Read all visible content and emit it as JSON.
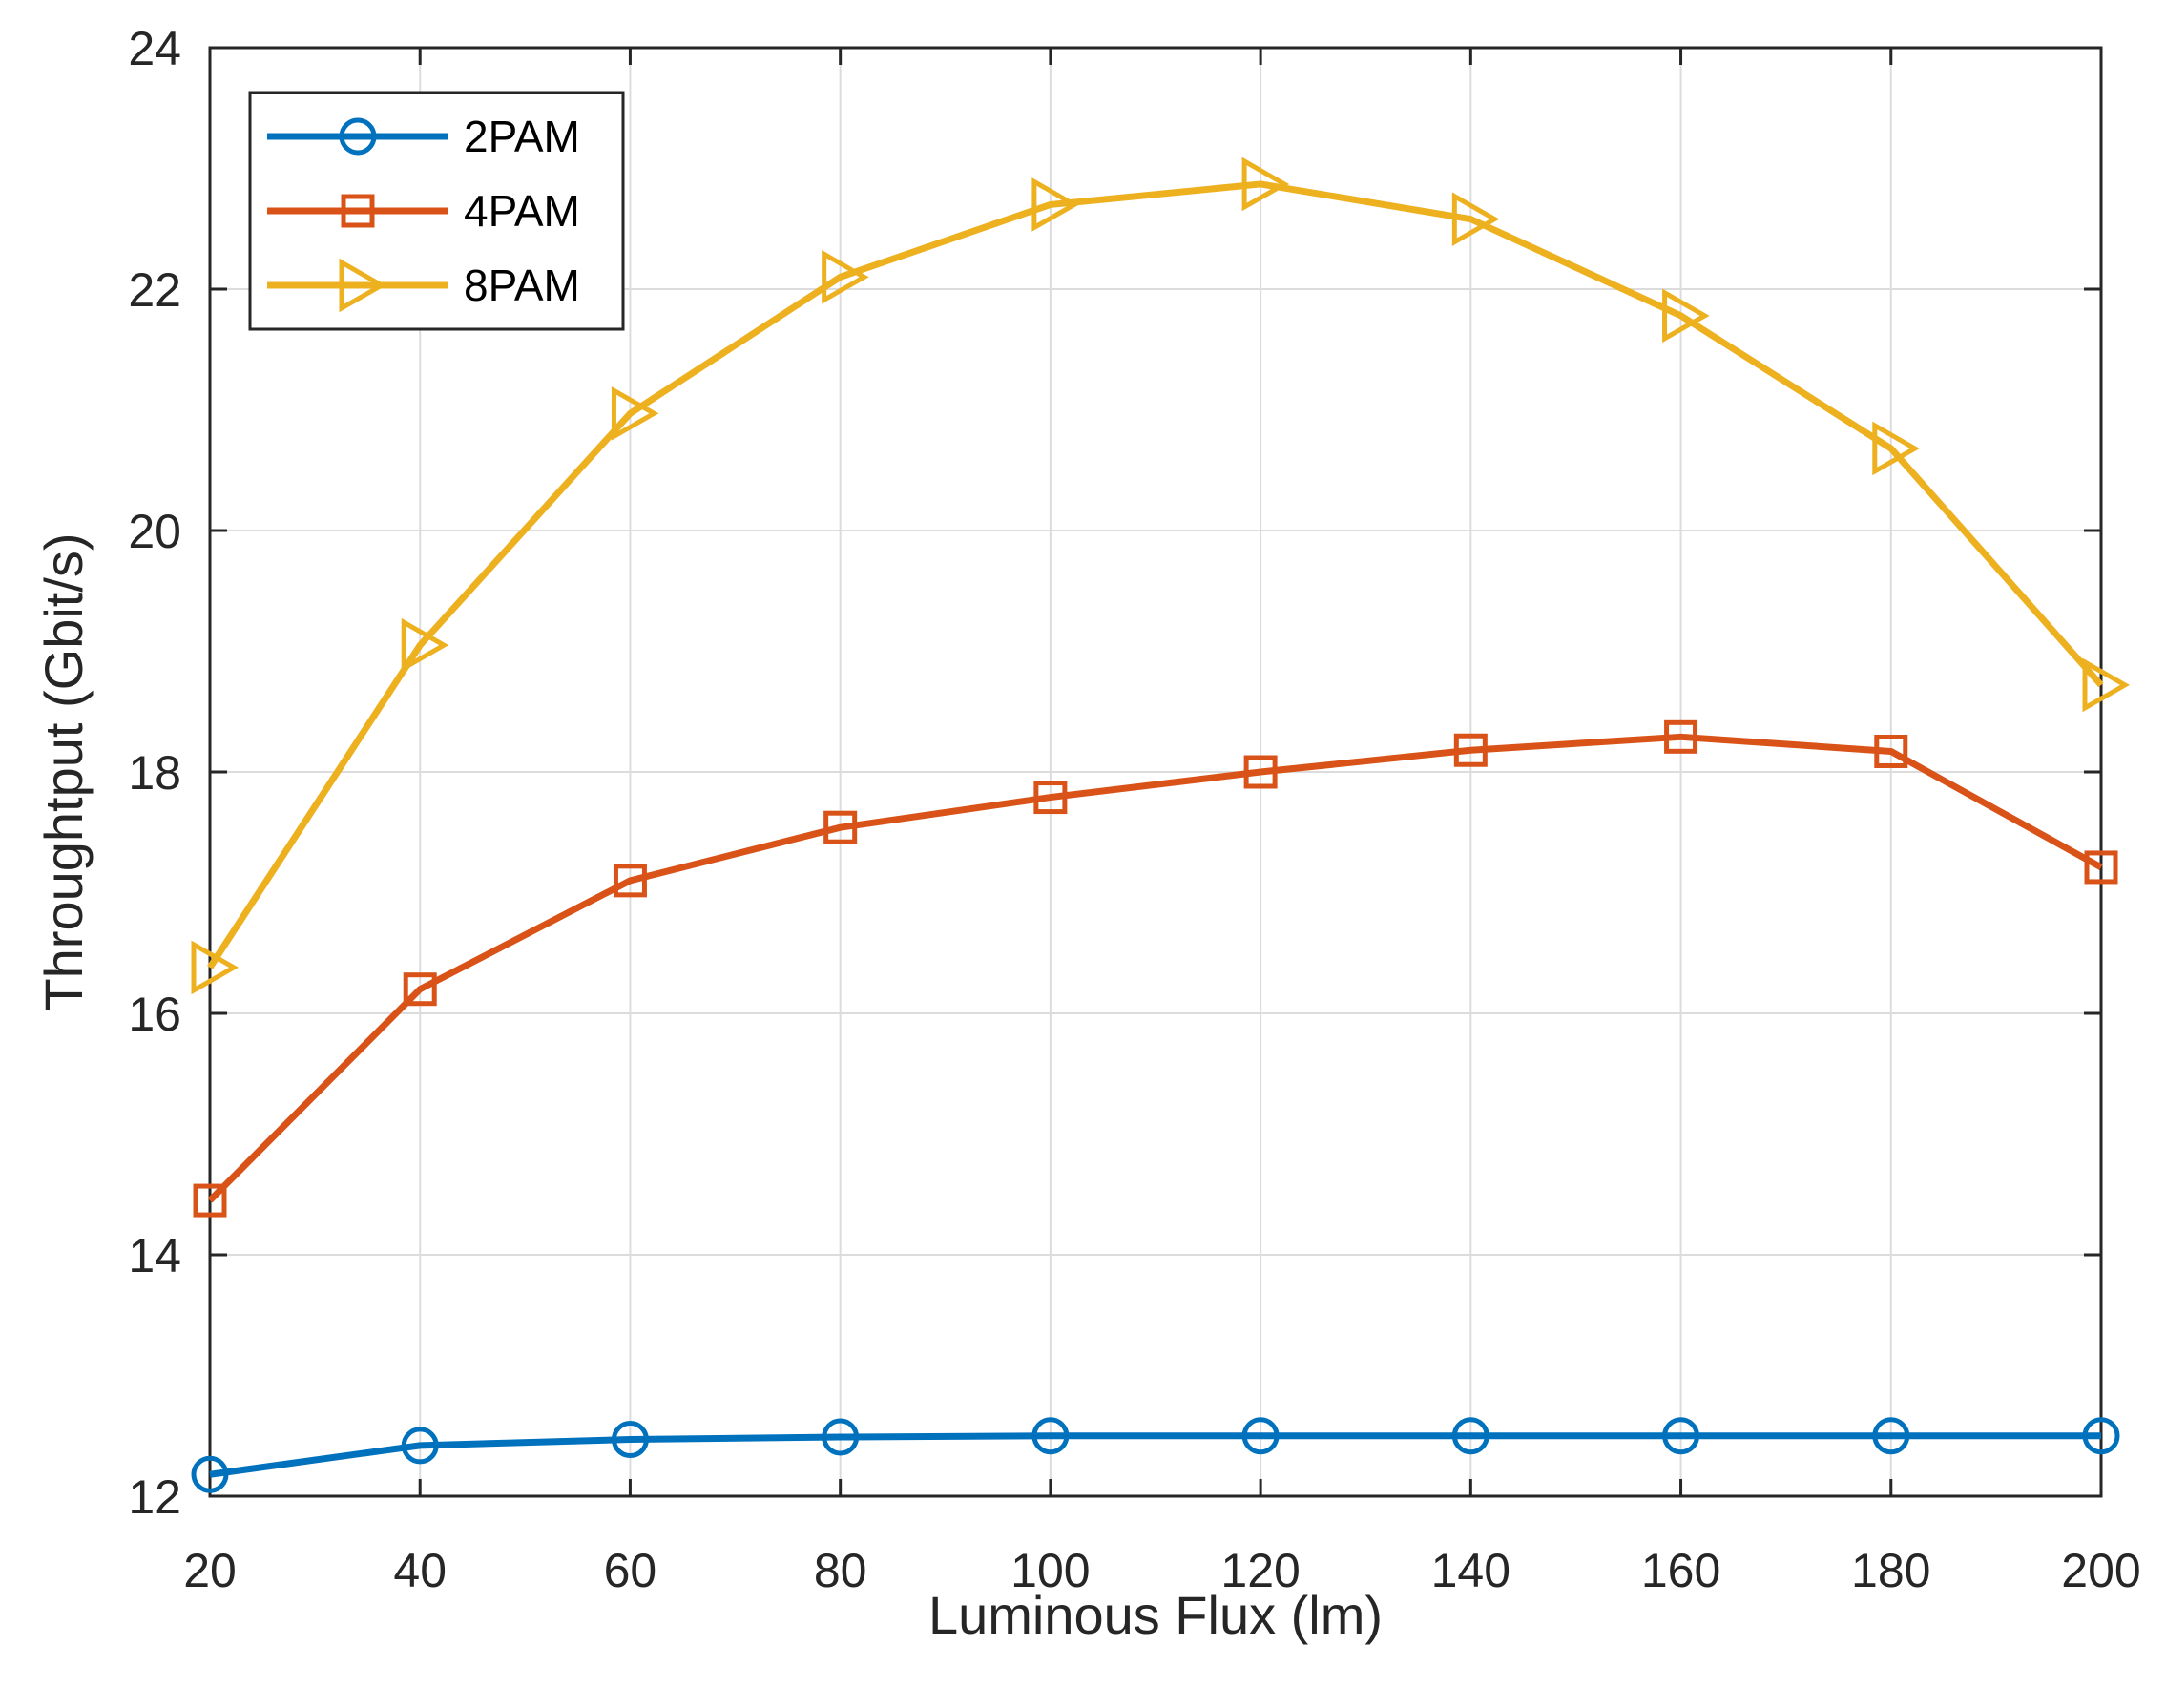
{
  "chart_data": {
    "type": "line",
    "title": "",
    "xlabel": "Luminous Flux (lm)",
    "ylabel": "Throughtput (Gbit/s)",
    "x": [
      20,
      40,
      60,
      80,
      100,
      120,
      140,
      160,
      180,
      200
    ],
    "xlim": [
      20,
      200
    ],
    "ylim": [
      12,
      24
    ],
    "xticks": [
      "20",
      "40",
      "60",
      "80",
      "100",
      "120",
      "140",
      "160",
      "180",
      "200"
    ],
    "yticks": [
      "12",
      "14",
      "16",
      "18",
      "20",
      "22",
      "24"
    ],
    "grid": true,
    "legend_position": "top-left",
    "series": [
      {
        "name": "2PAM",
        "marker": "circle",
        "color": "#0072BD",
        "values": [
          12.18,
          12.42,
          12.47,
          12.49,
          12.5,
          12.5,
          12.5,
          12.5,
          12.5,
          12.5
        ]
      },
      {
        "name": "4PAM",
        "marker": "square",
        "color": "#D95319",
        "values": [
          14.45,
          16.2,
          17.1,
          17.54,
          17.79,
          18.0,
          18.18,
          18.29,
          18.17,
          17.21
        ]
      },
      {
        "name": "8PAM",
        "marker": "triangle-right",
        "color": "#EDB120",
        "values": [
          16.38,
          19.05,
          20.97,
          22.1,
          22.7,
          22.87,
          22.58,
          21.78,
          20.68,
          18.72
        ]
      }
    ]
  }
}
